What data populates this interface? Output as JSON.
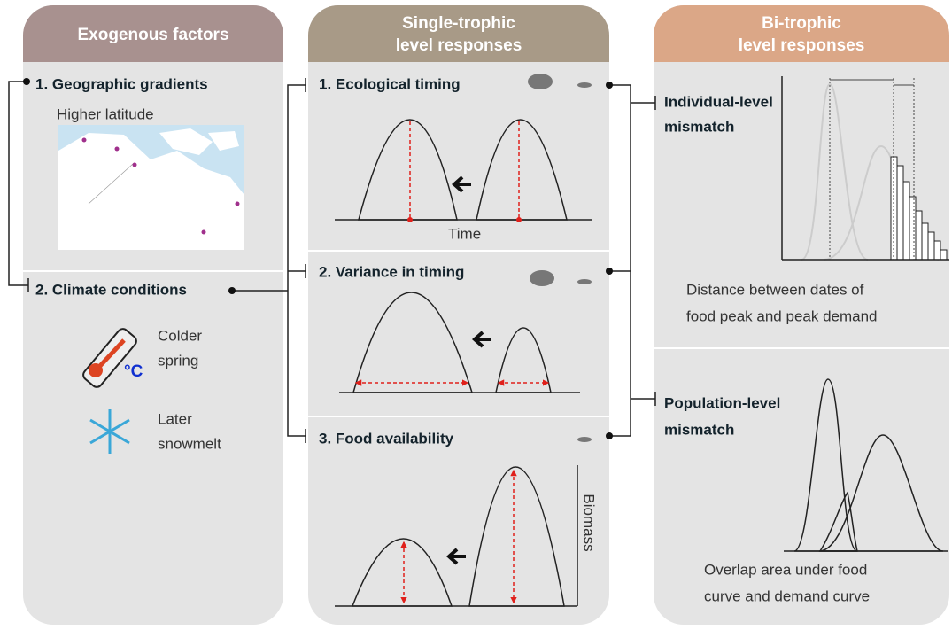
{
  "exogenous": {
    "header": "Exogenous factors",
    "geographic": {
      "title": "1. Geographic gradients",
      "label": "Higher latitude"
    },
    "climate": {
      "title": "2. Climate conditions",
      "unit": "°C",
      "items": [
        [
          "Colder",
          "spring"
        ],
        [
          "Later",
          "snowmelt"
        ]
      ]
    }
  },
  "single_trophic": {
    "header": [
      "Single-trophic",
      "level responses"
    ],
    "sections": [
      {
        "title": "1. Ecological timing",
        "axis": "Time"
      },
      {
        "title": "2. Variance in timing"
      },
      {
        "title": "3. Food availability",
        "axis": "Biomass"
      }
    ]
  },
  "bi_trophic": {
    "header": [
      "Bi-trophic",
      "level responses"
    ],
    "sections": [
      {
        "title": [
          "Individual-level",
          "mismatch"
        ],
        "caption": [
          "Distance between dates of",
          "food peak and peak demand"
        ]
      },
      {
        "title": [
          "Population-level",
          "mismatch"
        ],
        "caption": [
          "Overlap area under food",
          "curve and demand curve"
        ]
      }
    ]
  }
}
